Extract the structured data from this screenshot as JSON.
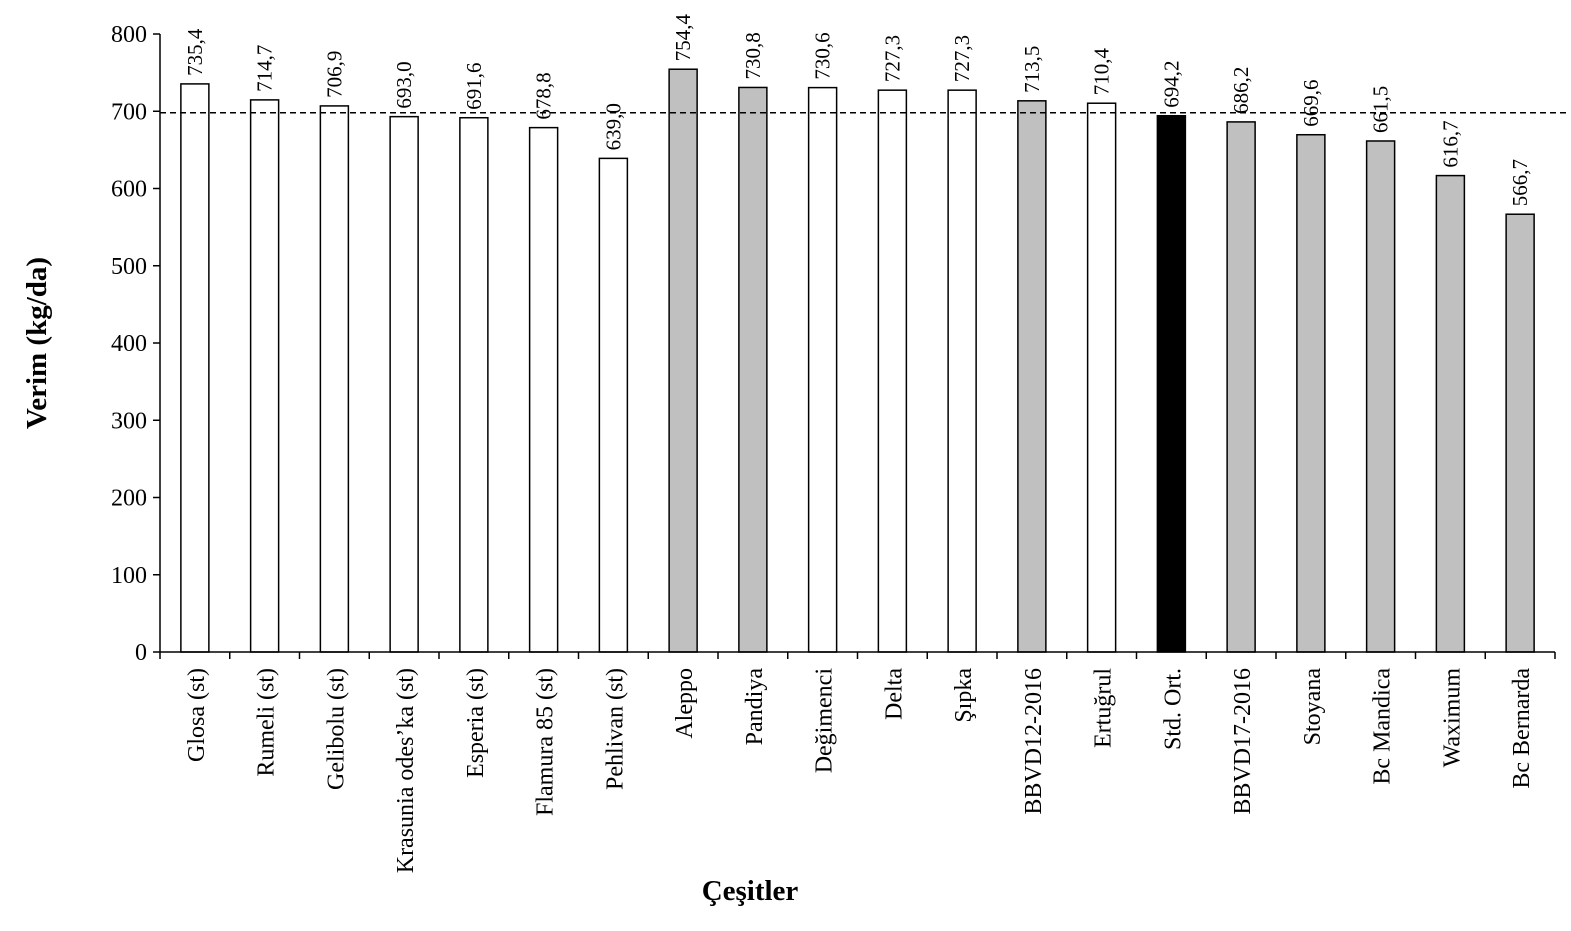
{
  "chart_data": {
    "type": "bar",
    "title": "",
    "xlabel": "Çeşitler",
    "ylabel": "Verim (kg/da)",
    "ylim": [
      0,
      800
    ],
    "yticks": [
      "0",
      "100",
      "200",
      "300",
      "400",
      "500",
      "600",
      "700",
      "800"
    ],
    "grid": false,
    "legend": "none",
    "reference_line": {
      "value": 698,
      "style": "dashed"
    },
    "categories": [
      "Glosa (st)",
      "Rumeli (st)",
      "Gelibolu (st)",
      "Krasunia odes’ka (st)",
      "Esperia (st)",
      "Flamura 85 (st)",
      "Pehlivan (st)",
      "Aleppo",
      "Pandiya",
      "Değimenci",
      "Delta",
      "Şıpka",
      "BBVD12-2016",
      "Ertuğrul",
      "Std. Ort.",
      "BBVD17-2016",
      "Stoyana",
      "Bc Mandica",
      "Waximum",
      "Bc Bernarda"
    ],
    "values": [
      735.4,
      714.7,
      706.9,
      693.0,
      691.6,
      678.8,
      639.0,
      754.4,
      730.8,
      730.6,
      727.3,
      727.3,
      713.5,
      710.4,
      694.2,
      686.2,
      669.6,
      661.5,
      616.7,
      566.7
    ],
    "value_labels": [
      "735,4",
      "714,7",
      "706,9",
      "693,0",
      "691,6",
      "678,8",
      "639,0",
      "754,4",
      "730,8",
      "730,6",
      "727,3",
      "727,3",
      "713,5",
      "710,4",
      "694,2",
      "686,2",
      "669,6",
      "661,5",
      "616,7",
      "566,7"
    ],
    "fill_colors": [
      "#ffffff",
      "#ffffff",
      "#ffffff",
      "#ffffff",
      "#ffffff",
      "#ffffff",
      "#ffffff",
      "#c0c0c0",
      "#c0c0c0",
      "#ffffff",
      "#ffffff",
      "#ffffff",
      "#c0c0c0",
      "#ffffff",
      "#000000",
      "#c0c0c0",
      "#c0c0c0",
      "#c0c0c0",
      "#c0c0c0",
      "#c0c0c0"
    ]
  }
}
